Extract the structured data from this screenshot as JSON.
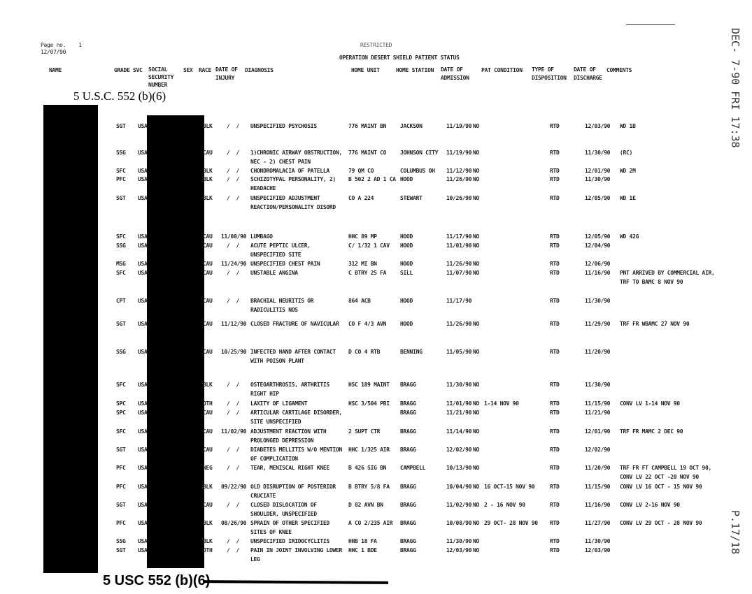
{
  "header": {
    "page_no": "Page no.    1",
    "date": "12/07/90",
    "classification": "RESTRICTED",
    "title": "OPERATION DESERT SHIELD PATIENT STATUS"
  },
  "columns": {
    "name": "NAME",
    "grade": "GRADE",
    "svc": "SVC",
    "ssn": "SOCIAL\nSECURITY\nNUMBER",
    "sex": "SEX",
    "race": "RACE",
    "injury": "DATE OF\nINJURY",
    "diagnosis": "DIAGNOSIS",
    "home_unit": "HOME UNIT",
    "home_station": "HOME STATION",
    "admission": "DATE OF\nADMISSION",
    "pat": "PAT CONDITION",
    "disposition": "TYPE OF\nDISPOSITION",
    "discharge": "DATE OF\nDISCHARGE",
    "comments": "COMMENTS"
  },
  "stamps": {
    "top": "5 U.S.C. 552 (b)(6)",
    "bottom": "5 USC 552 (b)(6)"
  },
  "fax": {
    "timestamp": "DEC- 7-90 FRI 17:38",
    "page": "P.17/18"
  },
  "rows": [
    {
      "grade": "SGT",
      "svc": "USA",
      "race": "BLK",
      "injury": "/  /",
      "diagnosis": "UNSPECIFIED PSYCHOSIS",
      "unit": "776 MAINT BN",
      "station": "JACKSON",
      "adm": "11/19/90",
      "pat": "NO",
      "leave": "",
      "disp": "RTD",
      "dis": "12/03/90",
      "comments": "WD 1B"
    },
    {
      "grade": "SSG",
      "svc": "USA",
      "race": "CAU",
      "injury": "/  /",
      "diagnosis": "1)CHRONIC AIRWAY OBSTRUCTION,\nNEC - 2) CHEST PAIN",
      "unit": "776 MAINT CO",
      "station": "JOHNSON CITY",
      "adm": "11/19/90",
      "pat": "NO",
      "leave": "",
      "disp": "RTD",
      "dis": "11/30/90",
      "comments": "(RC)"
    },
    {
      "grade": "SFC",
      "svc": "USA",
      "race": "BLK",
      "injury": "/  /",
      "diagnosis": "CHONDROMALACIA OF PATELLA",
      "unit": "79 QM CO",
      "station": "COLUMBUS OH",
      "adm": "11/12/90",
      "pat": "NO",
      "leave": "",
      "disp": "RTD",
      "dis": "12/01/90",
      "comments": "WD 2M"
    },
    {
      "grade": "PFC",
      "svc": "USA",
      "race": "BLK",
      "injury": "/  /",
      "diagnosis": "SCHIZOTYPAL PERSONALITY, 2)\nHEADACHE",
      "unit": "B 502 2 AD 1 CA",
      "station": "HOOD",
      "adm": "11/26/90",
      "pat": "NO",
      "leave": "",
      "disp": "RTD",
      "dis": "11/30/90",
      "comments": ""
    },
    {
      "grade": "SGT",
      "svc": "USA",
      "race": "BLK",
      "injury": "/  /",
      "diagnosis": "UNSPECIFIED ADJUSTMENT\nREACTION/PERSONALITY DISORD",
      "unit": "CO A 224",
      "station": "STEWART",
      "adm": "10/26/90",
      "pat": "NO",
      "leave": "",
      "disp": "RTD",
      "dis": "12/05/90",
      "comments": "WD 1E"
    },
    {
      "grade": "SFC",
      "svc": "USA",
      "race": "CAU",
      "injury": "11/08/90",
      "diagnosis": "LUMBAGO",
      "unit": "HHC 89 MP",
      "station": "HOOD",
      "adm": "11/17/90",
      "pat": "NO",
      "leave": "",
      "disp": "RTD",
      "dis": "12/05/90",
      "comments": "WD 42G"
    },
    {
      "grade": "SSG",
      "svc": "USA",
      "race": "CAU",
      "injury": "/  /",
      "diagnosis": "ACUTE PEPTIC ULCER,\nUNSPECIFIED SITE",
      "unit": "C/ 1/32 1 CAV",
      "station": "HOOD",
      "adm": "11/01/90",
      "pat": "NO",
      "leave": "",
      "disp": "RTD",
      "dis": "12/04/90",
      "comments": ""
    },
    {
      "grade": "MSG",
      "svc": "USA",
      "race": "CAU",
      "injury": "11/24/90",
      "diagnosis": "UNSPECIFIED CHEST PAIN",
      "unit": "312 MI BN",
      "station": "HOOD",
      "adm": "11/26/90",
      "pat": "NO",
      "leave": "",
      "disp": "RTD",
      "dis": "12/06/90",
      "comments": ""
    },
    {
      "grade": "SFC",
      "svc": "USA",
      "race": "CAU",
      "injury": "/  /",
      "diagnosis": "UNSTABLE ANGINA",
      "unit": "C BTRY 25 FA",
      "station": "SILL",
      "adm": "11/07/90",
      "pat": "NO",
      "leave": "",
      "disp": "RTD",
      "dis": "11/16/90",
      "comments": "PNT ARRIVED BY COMMERCIAL AIR,\nTRF TO BAMC 8 NOV 90"
    },
    {
      "grade": "CPT",
      "svc": "USA",
      "race": "CAU",
      "injury": "/  /",
      "diagnosis": "BRACHIAL NEURITIS OR\nRADICULITIS NOS",
      "unit": "864 ACB",
      "station": "HOOD",
      "adm": "11/17/90",
      "pat": "",
      "leave": "",
      "disp": "RTD",
      "dis": "11/30/90",
      "comments": ""
    },
    {
      "grade": "SGT",
      "svc": "USA",
      "race": "CAU",
      "injury": "11/12/90",
      "diagnosis": "CLOSED FRACTURE OF NAVICULAR",
      "unit": "CO F 4/3 AVN",
      "station": "HOOD",
      "adm": "11/26/90",
      "pat": "NO",
      "leave": "",
      "disp": "RTD",
      "dis": "11/29/90",
      "comments": "TRF FR WBAMC 27 NOV 90"
    },
    {
      "grade": "SSG",
      "svc": "USA",
      "race": "CAU",
      "injury": "10/25/90",
      "diagnosis": "INFECTED HAND AFTER CONTACT\nWITH POISON PLANT",
      "unit": "D CO 4 RTB",
      "station": "BENNING",
      "adm": "11/05/90",
      "pat": "NO",
      "leave": "",
      "disp": "RTD",
      "dis": "11/20/90",
      "comments": ""
    },
    {
      "grade": "SFC",
      "svc": "USA",
      "race": "BLK",
      "injury": "/  /",
      "diagnosis": "OSTEOARTHROSIS, ARTHRITIS\nRIGHT HIP",
      "unit": "HSC 189 MAINT",
      "station": "BRAGG",
      "adm": "11/30/90",
      "pat": "NO",
      "leave": "",
      "disp": "RTD",
      "dis": "11/30/90",
      "comments": ""
    },
    {
      "grade": "SPC",
      "svc": "USA",
      "race": "OTH",
      "injury": "/  /",
      "diagnosis": "LAXITY OF LIGAMENT",
      "unit": "HSC 3/504 PBI",
      "station": "BRAGG",
      "adm": "11/01/90",
      "pat": "NO",
      "leave": "1-14 NOV 90",
      "disp": "RTD",
      "dis": "11/15/90",
      "comments": "CONV LV 1-14 NOV 90"
    },
    {
      "grade": "SPC",
      "svc": "USA",
      "race": "CAU",
      "injury": "/  /",
      "diagnosis": "ARTICULAR CARTILAGE DISORDER,\nSITE UNSPECIFIED",
      "unit": "",
      "station": "BRAGG",
      "adm": "11/21/90",
      "pat": "NO",
      "leave": "",
      "disp": "RTD",
      "dis": "11/21/90",
      "comments": ""
    },
    {
      "grade": "SFC",
      "svc": "USA",
      "race": "CAU",
      "injury": "11/02/90",
      "diagnosis": "ADJUSTMENT REACTION WITH\nPROLONGED DEPRESSION",
      "unit": "2 SUPT CTR",
      "station": "BRAGG",
      "adm": "11/14/90",
      "pat": "NO",
      "leave": "",
      "disp": "RTD",
      "dis": "12/01/90",
      "comments": "TRF FR MAMC 2 DEC 90"
    },
    {
      "grade": "SGT",
      "svc": "USA",
      "race": "CAU",
      "injury": "/  /",
      "diagnosis": "DIABETES MELLITIS W/O MENTION\nOF COMPLICATION",
      "unit": "HHC 1/325 AIR",
      "station": "BRAGG",
      "adm": "12/02/90",
      "pat": "NO",
      "leave": "",
      "disp": "RTD",
      "dis": "12/02/90",
      "comments": ""
    },
    {
      "grade": "PFC",
      "svc": "USA",
      "race": "NEG",
      "injury": "/  /",
      "diagnosis": "TEAR, MENISCAL RIGHT KNEE",
      "unit": "B 426 SIG BN",
      "station": "CAMPBELL",
      "adm": "10/13/90",
      "pat": "NO",
      "leave": "",
      "disp": "RTD",
      "dis": "11/20/90",
      "comments": "TRF FR FT CAMPBELL 19 OCT 90,\nCONV LV 22 OCT -20 NOV 90"
    },
    {
      "grade": "PFC",
      "svc": "USA",
      "race": "BLK",
      "injury": "09/22/90",
      "diagnosis": "OLD DISRUPTION OF POSTERIOR\nCRUCIATE",
      "unit": "B BTRY 5/8 FA",
      "station": "BRAGG",
      "adm": "10/04/90",
      "pat": "NO",
      "leave": "16 OCT-15 NOV 90",
      "disp": "RTD",
      "dis": "11/15/90",
      "comments": "CONV LV 16 OCT - 15 NOV 90"
    },
    {
      "grade": "SGT",
      "svc": "USA",
      "race": "CAU",
      "injury": "/  /",
      "diagnosis": "CLOSED DISLOCATION OF\nSHOULDER, UNSPECIFIED",
      "unit": "D 82 AVN BN",
      "station": "BRAGG",
      "adm": "11/02/90",
      "pat": "NO",
      "leave": "2 - 16 NOV 90",
      "disp": "RTD",
      "dis": "11/16/90",
      "comments": "CONV LV 2-16 NOV 90"
    },
    {
      "grade": "PFC",
      "svc": "USA",
      "race": "BLK",
      "injury": "08/26/90",
      "diagnosis": "SPRAIN OF OTHER SPECIFIED\nSITES OF KNEE",
      "unit": "A CO 2/235 AIR",
      "station": "BRAGG",
      "adm": "10/08/90",
      "pat": "NO",
      "leave": "29 OCT- 28 NOV 90",
      "disp": "RTD",
      "dis": "11/27/90",
      "comments": "CONV LV 29 OCT - 28 NOV 90"
    },
    {
      "grade": "SSG",
      "svc": "USA",
      "race": "BLK",
      "injury": "/  /",
      "diagnosis": "UNSPECIFIED IRIDOCYCLITIS",
      "unit": "HHB 18 FA",
      "station": "BRAGG",
      "adm": "11/30/90",
      "pat": "NO",
      "leave": "",
      "disp": "RTD",
      "dis": "11/30/90",
      "comments": ""
    },
    {
      "grade": "SGT",
      "svc": "USA",
      "race": "OTH",
      "injury": "/  /",
      "diagnosis": "PAIN IN JOINT INVOLVING LOWER\nLEG",
      "unit": "HHC 1 BDE",
      "station": "BRAGG",
      "adm": "12/03/90",
      "pat": "NO",
      "leave": "",
      "disp": "RTD",
      "dis": "12/03/90",
      "comments": ""
    }
  ]
}
